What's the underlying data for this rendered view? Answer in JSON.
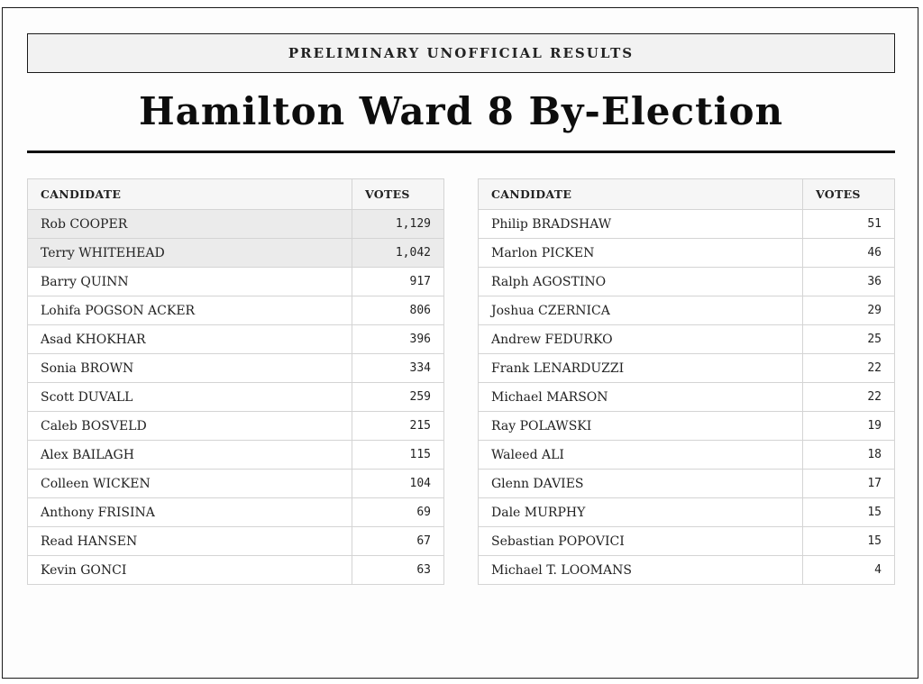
{
  "banner": "PRELIMINARY UNOFFICIAL RESULTS",
  "title": "Hamilton Ward 8 By-Election",
  "tables": [
    {
      "headers": {
        "candidate": "CANDIDATE",
        "votes": "VOTES"
      },
      "rows": [
        {
          "name": "Rob COOPER",
          "votes": "1,129",
          "highlighted": true
        },
        {
          "name": "Terry WHITEHEAD",
          "votes": "1,042",
          "highlighted": true
        },
        {
          "name": "Barry QUINN",
          "votes": "917"
        },
        {
          "name": "Lohifa POGSON ACKER",
          "votes": "806"
        },
        {
          "name": "Asad KHOKHAR",
          "votes": "396"
        },
        {
          "name": "Sonia BROWN",
          "votes": "334"
        },
        {
          "name": "Scott DUVALL",
          "votes": "259"
        },
        {
          "name": "Caleb BOSVELD",
          "votes": "215"
        },
        {
          "name": "Alex BAILAGH",
          "votes": "115"
        },
        {
          "name": "Colleen WICKEN",
          "votes": "104"
        },
        {
          "name": "Anthony FRISINA",
          "votes": "69"
        },
        {
          "name": "Read HANSEN",
          "votes": "67"
        },
        {
          "name": "Kevin GONCI",
          "votes": "63"
        }
      ]
    },
    {
      "headers": {
        "candidate": "CANDIDATE",
        "votes": "VOTES"
      },
      "rows": [
        {
          "name": "Philip BRADSHAW",
          "votes": "51"
        },
        {
          "name": "Marlon PICKEN",
          "votes": "46"
        },
        {
          "name": "Ralph AGOSTINO",
          "votes": "36"
        },
        {
          "name": "Joshua CZERNICA",
          "votes": "29"
        },
        {
          "name": "Andrew FEDURKO",
          "votes": "25"
        },
        {
          "name": "Frank LENARDUZZI",
          "votes": "22"
        },
        {
          "name": "Michael MARSON",
          "votes": "22"
        },
        {
          "name": "Ray POLAWSKI",
          "votes": "19"
        },
        {
          "name": "Waleed ALI",
          "votes": "18"
        },
        {
          "name": "Glenn DAVIES",
          "votes": "17"
        },
        {
          "name": "Dale MURPHY",
          "votes": "15"
        },
        {
          "name": "Sebastian POPOVICI",
          "votes": "15"
        },
        {
          "name": "Michael T. LOOMANS",
          "votes": "4"
        }
      ]
    }
  ]
}
